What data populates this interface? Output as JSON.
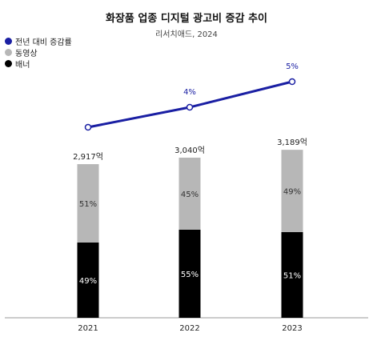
{
  "chart_data": {
    "type": "bar",
    "title": "화장품 업종 디지털 광고비 증감 추이",
    "subtitle": "리서치애드, 2024",
    "categories": [
      "2021",
      "2022",
      "2023"
    ],
    "totals": [
      2917,
      3040,
      3189
    ],
    "total_labels": [
      "2,917억",
      "3,040억",
      "3,189억"
    ],
    "series": [
      {
        "name": "배너",
        "values": [
          49,
          55,
          51
        ],
        "labels": [
          "49%",
          "55%",
          "51%"
        ],
        "color": "#000000"
      },
      {
        "name": "동영상",
        "values": [
          51,
          45,
          49
        ],
        "labels": [
          "51%",
          "45%",
          "49%"
        ],
        "color": "#b7b7b7"
      }
    ],
    "line": {
      "name": "전년 대비 증감률",
      "values": [
        null,
        4,
        5
      ],
      "labels": [
        "",
        "4%",
        "5%"
      ],
      "color": "#1a1fa3"
    },
    "legend": [
      "전년 대비 증감률",
      "동영상",
      "배너"
    ],
    "legend_position": "top-left"
  }
}
